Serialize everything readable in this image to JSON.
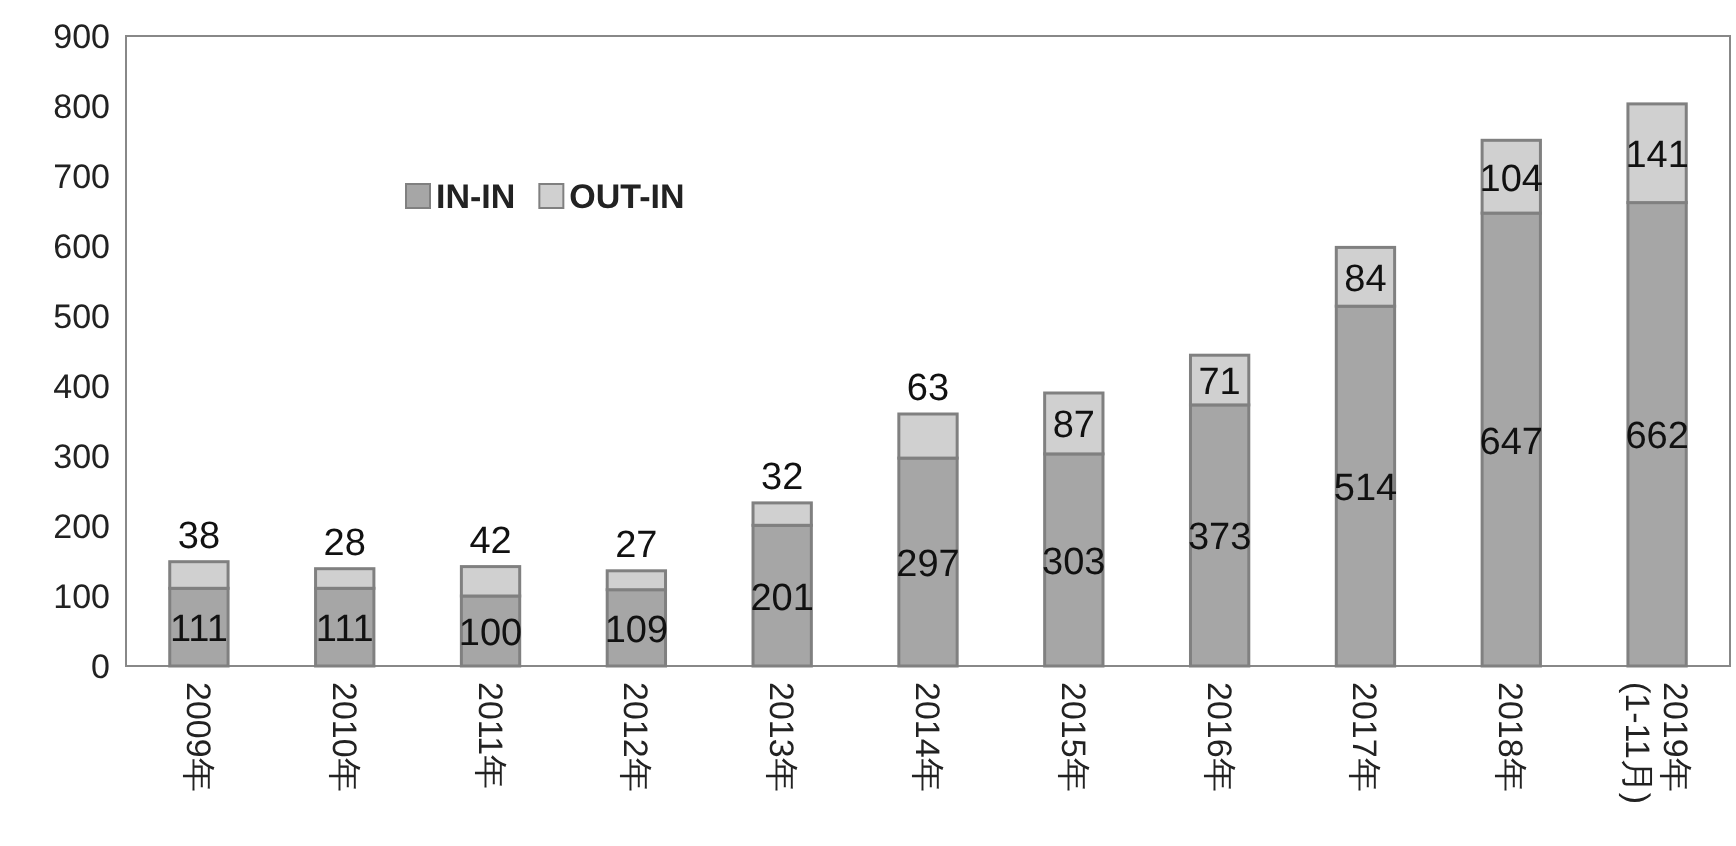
{
  "chart_data": {
    "type": "bar",
    "stacked": true,
    "categories": [
      "2009年",
      "2010年",
      "2011年",
      "2012年",
      "2013年",
      "2014年",
      "2015年",
      "2016年",
      "2017年",
      "2018年",
      "2019年\n(1-11月)"
    ],
    "series": [
      {
        "name": "IN-IN",
        "color": "#a6a6a6",
        "values": [
          111,
          111,
          100,
          109,
          201,
          297,
          303,
          373,
          514,
          647,
          662
        ]
      },
      {
        "name": "OUT-IN",
        "color": "#d0d0d0",
        "values": [
          38,
          28,
          42,
          27,
          32,
          63,
          87,
          71,
          84,
          104,
          141
        ]
      }
    ],
    "ylim": [
      0,
      900
    ],
    "yticks": [
      0,
      100,
      200,
      300,
      400,
      500,
      600,
      700,
      800,
      900
    ],
    "grid": false,
    "legend": "top left",
    "data_labels": true
  }
}
